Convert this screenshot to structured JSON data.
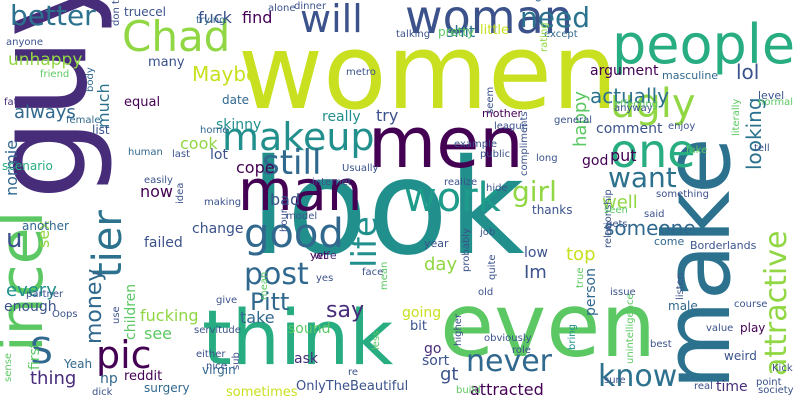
{
  "background": "#ffffff",
  "palette": {
    "purple": "#440154",
    "indigo": "#472c7a",
    "violet": "#3b528b",
    "blue": "#31688e",
    "steel": "#2c728e",
    "teal": "#21908d",
    "sea": "#1e9b8a",
    "jade": "#27ad81",
    "green": "#5cc863",
    "lime": "#90d743",
    "yellow": "#c8e020"
  },
  "words": [
    "look",
    "guy",
    "women",
    "make",
    "incel",
    "even",
    "think",
    "men",
    "man",
    "woman",
    "people",
    "Chad",
    "will",
    "better",
    "makeup",
    "work",
    "one",
    "ugly",
    "good",
    "still",
    "tier",
    "life",
    "pic",
    "know",
    "post",
    "attractive",
    "want",
    "never",
    "girl",
    "need",
    "actually",
    "someone",
    "money",
    "Pitt",
    "say",
    "looking",
    "happy",
    "unhappy",
    "S",
    "u",
    "lol",
    "fuck",
    "find",
    "Maybe",
    "thing",
    "every",
    "sex",
    "always",
    "normie",
    "cook",
    "bad",
    "cope",
    "Im",
    "top",
    "put",
    "well",
    "day",
    "see",
    "shit",
    "attracted",
    "gt",
    "fucking",
    "take",
    "skinny",
    "sound",
    "much",
    "np",
    "lot",
    "children",
    "try",
    "really",
    "first",
    "enough",
    "ask",
    "comment",
    "person",
    "god",
    "scenario",
    "date",
    "list",
    "equal",
    "many",
    "truecel",
    "argument",
    "now",
    "failed",
    "change",
    "sometimes",
    "OnlyTheBeautiful",
    "reddit",
    "Yeah",
    "virgin",
    "surgery",
    "going",
    "bit",
    "sort",
    "time",
    "low",
    "thanks",
    "wife",
    "yet",
    "year",
    "mean",
    "go",
    "male",
    "come",
    "little",
    "mother",
    "pretty",
    "level",
    "masculine",
    "control",
    "dinner",
    "alone",
    "trying",
    "talking",
    "except",
    "rating",
    "don t",
    "metro",
    "friend",
    "anyone",
    "fat",
    "female",
    "body",
    "home",
    "last",
    "human",
    "Usually",
    "internet",
    "realize",
    "job",
    "probably",
    "relationship",
    "fake",
    "tell",
    "Kick",
    "society",
    "point",
    "sure",
    "real",
    "weird",
    "play",
    "value",
    "best",
    "unintelligence",
    "bring",
    "issue",
    "true",
    "Borderlands",
    "listen",
    "course",
    "literally",
    "said",
    "seen",
    "gets",
    "something",
    "normal",
    "effecting",
    "anyway",
    "enjoy",
    "general",
    "league",
    "example",
    "public",
    "compliments",
    "long",
    "seem",
    "hide",
    "quite",
    "old",
    "model",
    "making",
    "idea",
    "easily",
    "partner",
    "hour",
    "give",
    "face",
    "yes",
    "servitude",
    "use",
    "Oops",
    "dick",
    "either",
    "nice",
    "sub",
    "re",
    "less",
    "higher",
    "obviously",
    "role",
    "build",
    "sense",
    "another",
    "mean"
  ]
}
